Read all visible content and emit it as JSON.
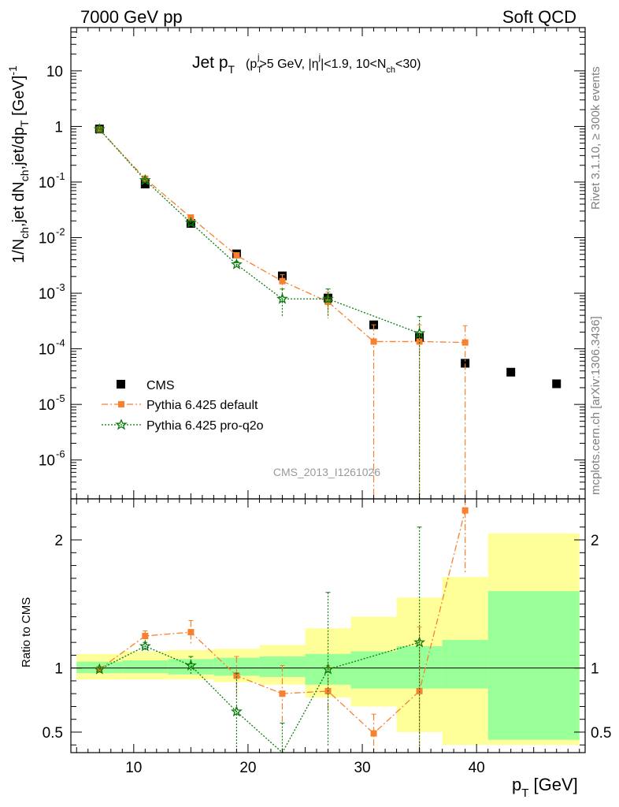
{
  "header": {
    "left": "7000 GeV pp",
    "right": "Soft QCD"
  },
  "side": {
    "rivet": "Rivet 3.1.10, ≥ 300k events",
    "mcplots": "mcplots.cern.ch [arXiv:1306.3436]"
  },
  "watermark": "CMS_2013_I1261026",
  "colors": {
    "cms": "#000000",
    "default": "#f7812f",
    "proq2o": "#0a7a0a",
    "band_green": "#99ff99",
    "band_yellow": "#ffff99"
  },
  "chart_data": [
    {
      "type": "scatter",
      "title": "Jet pT (pTj>5 GeV, |ηj|<1.9, 10<Nch<30)",
      "xlabel": "pT [GeV]",
      "ylabel": "1/Nch,jet dNch,jet/dpT [GeV]-1",
      "yscale": "log",
      "xlim": [
        4.5,
        49.5
      ],
      "ylim": [
        2e-07,
        60
      ],
      "y_tick_labels": [
        "10^-6",
        "10^-5",
        "10^-4",
        "10^-3",
        "10^-2",
        "10^-1",
        "1",
        "10"
      ],
      "legend": [
        "CMS",
        "Pythia 6.425 default",
        "Pythia 6.425 pro-q2o"
      ],
      "legend_position": "lower-left",
      "series": [
        {
          "name": "CMS",
          "x": [
            7,
            11,
            15,
            19,
            23,
            27,
            31,
            35,
            39,
            43,
            47
          ],
          "y": [
            0.9,
            0.092,
            0.018,
            0.0051,
            0.00205,
            0.00082,
            0.00027,
            0.00016,
            5.5e-05,
            3.8e-05,
            2.35e-05
          ]
        },
        {
          "name": "Pythia 6.425 default",
          "x": [
            7,
            11,
            15,
            19,
            23,
            27,
            31,
            35,
            39
          ],
          "y": [
            0.88,
            0.115,
            0.023,
            0.0048,
            0.00165,
            0.0007,
            0.000135,
            0.000135,
            0.00013
          ],
          "yerr_low": [
            0.02,
            0.005,
            0.0015,
            0.0005,
            0.0005,
            0.00035,
            0.000135,
            0.000135,
            0.00013
          ],
          "yerr_high": [
            0.02,
            0.005,
            0.0015,
            0.0005,
            0.0005,
            0.00035,
            0.000135,
            0.000135,
            0.00013
          ]
        },
        {
          "name": "Pythia 6.425 pro-q2o",
          "x": [
            7,
            11,
            15,
            19,
            23,
            27,
            35
          ],
          "y": [
            0.89,
            0.108,
            0.0185,
            0.0033,
            0.00079,
            0.00079,
            0.00019
          ],
          "yerr_low": [
            0.02,
            0.005,
            0.0015,
            0.0004,
            0.0004,
            0.0004,
            0.00019
          ],
          "yerr_high": [
            0.02,
            0.005,
            0.0015,
            0.0004,
            0.0004,
            0.0004,
            0.00019
          ]
        }
      ]
    },
    {
      "type": "scatter",
      "ylabel": "Ratio to CMS",
      "xlabel": "pT [GeV]",
      "xlim": [
        4.5,
        49.5
      ],
      "ylim": [
        0.34,
        2.32
      ],
      "y_ticks": [
        0.5,
        1,
        2
      ],
      "x_ticks": [
        10,
        20,
        30,
        40
      ],
      "reference_line": 1,
      "bands": {
        "edges": [
          5,
          9,
          13,
          17,
          21,
          25,
          29,
          33,
          37,
          41,
          49
        ],
        "green_low": [
          0.96,
          0.96,
          0.95,
          0.94,
          0.93,
          0.87,
          0.84,
          0.84,
          0.84,
          0.44
        ],
        "green_high": [
          1.05,
          1.06,
          1.07,
          1.08,
          1.09,
          1.11,
          1.13,
          1.17,
          1.22,
          1.6
        ],
        "yellow_low": [
          0.91,
          0.91,
          0.91,
          0.89,
          0.87,
          0.77,
          0.7,
          0.5,
          0.4,
          0.4
        ],
        "yellow_high": [
          1.11,
          1.13,
          1.14,
          1.15,
          1.18,
          1.31,
          1.4,
          1.55,
          1.71,
          2.05
        ]
      },
      "series": [
        {
          "name": "Pythia 6.425 default",
          "x": [
            7,
            11,
            15,
            19,
            23,
            27,
            31,
            35,
            39
          ],
          "y": [
            0.99,
            1.25,
            1.28,
            0.94,
            0.8,
            0.82,
            0.49,
            0.82,
            2.23
          ],
          "yerr_low": [
            0.01,
            0.04,
            0.09,
            0.15,
            0.22,
            0.2,
            0.15,
            0.5,
            0.5
          ],
          "yerr_high": [
            0.01,
            0.04,
            0.09,
            0.15,
            0.22,
            0.2,
            0.15,
            0.5,
            0.5
          ]
        },
        {
          "name": "Pythia 6.425 pro-q2o",
          "x": [
            7,
            11,
            15,
            19,
            23,
            27,
            35
          ],
          "y": [
            0.99,
            1.17,
            1.02,
            0.66,
            0.27,
            0.99,
            1.2
          ],
          "yerr_low": [
            0.01,
            0.03,
            0.07,
            0.3,
            0.3,
            0.6,
            0.9
          ],
          "yerr_high": [
            0.01,
            0.03,
            0.07,
            0.3,
            0.3,
            0.6,
            0.9
          ]
        }
      ]
    }
  ]
}
